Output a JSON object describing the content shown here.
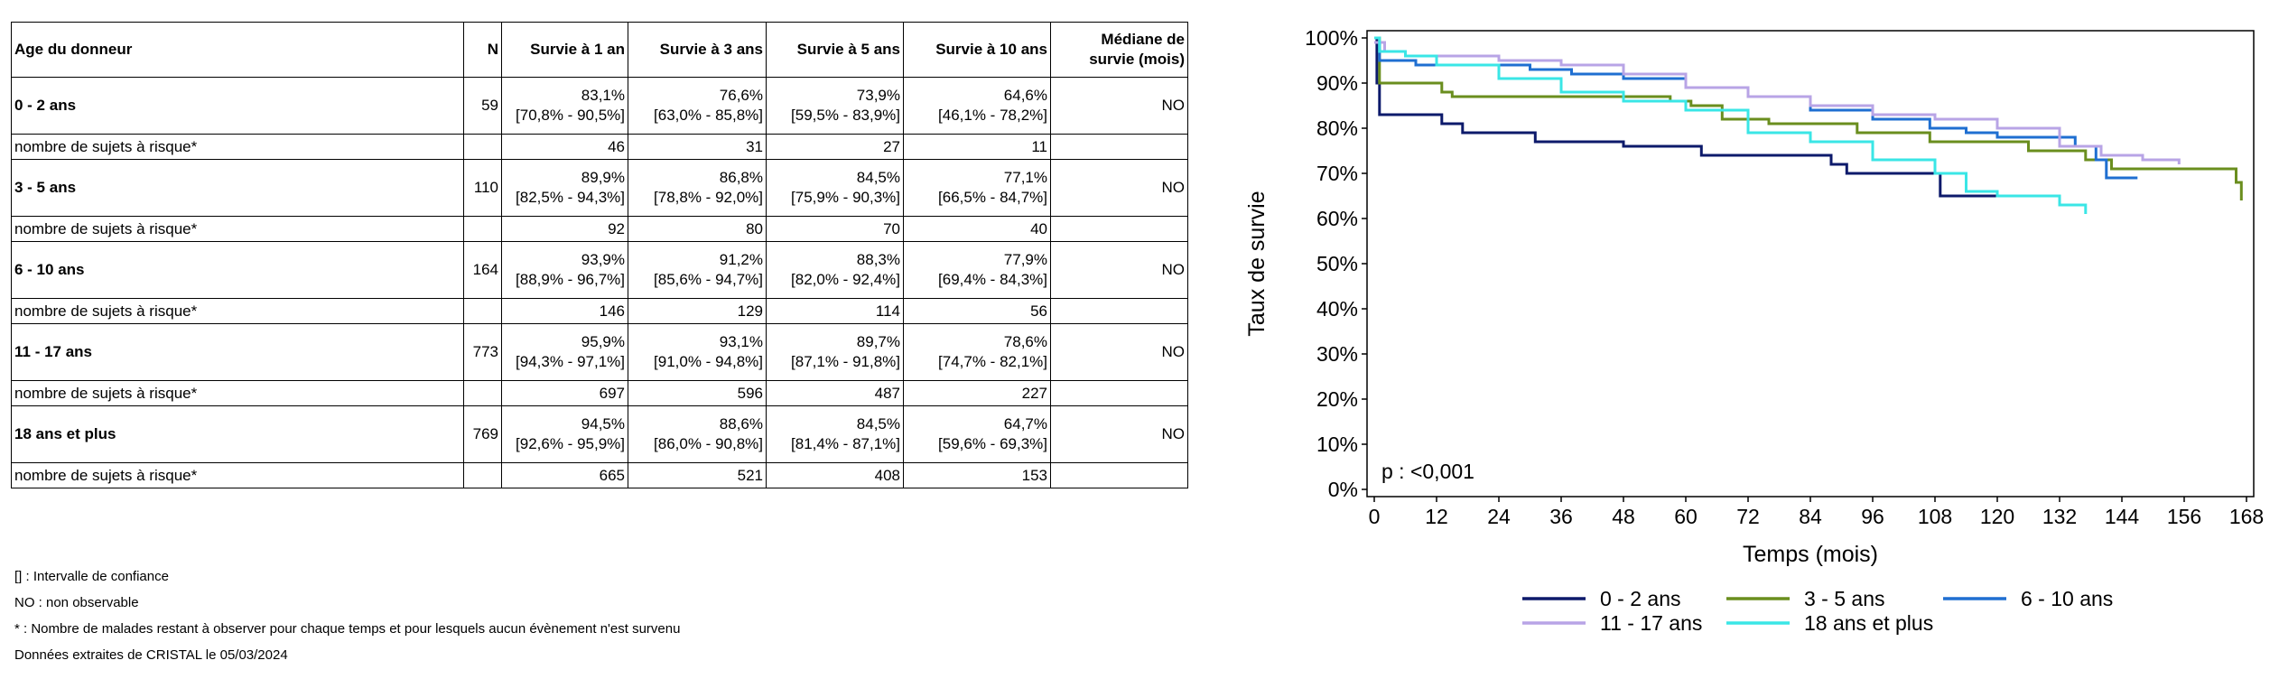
{
  "table": {
    "headers": [
      "Age du donneur",
      "N",
      "Survie à 1 an",
      "Survie à 3 ans",
      "Survie à 5 ans",
      "Survie à 10 ans",
      [
        "Médiane de",
        "survie (mois)"
      ]
    ],
    "risk_label": "nombre de sujets à risque*",
    "groups": [
      {
        "name": "0 - 2 ans",
        "n": "59",
        "surv": [
          [
            "83,1%",
            "[70,8% - 90,5%]"
          ],
          [
            "76,6%",
            "[63,0% - 85,8%]"
          ],
          [
            "73,9%",
            "[59,5% - 83,9%]"
          ],
          [
            "64,6%",
            "[46,1% - 78,2%]"
          ]
        ],
        "median": "NO",
        "risk": [
          "46",
          "31",
          "27",
          "11"
        ]
      },
      {
        "name": "3 - 5 ans",
        "n": "110",
        "surv": [
          [
            "89,9%",
            "[82,5% - 94,3%]"
          ],
          [
            "86,8%",
            "[78,8% - 92,0%]"
          ],
          [
            "84,5%",
            "[75,9% - 90,3%]"
          ],
          [
            "77,1%",
            "[66,5% - 84,7%]"
          ]
        ],
        "median": "NO",
        "risk": [
          "92",
          "80",
          "70",
          "40"
        ]
      },
      {
        "name": "6 - 10 ans",
        "n": "164",
        "surv": [
          [
            "93,9%",
            "[88,9% - 96,7%]"
          ],
          [
            "91,2%",
            "[85,6% - 94,7%]"
          ],
          [
            "88,3%",
            "[82,0% - 92,4%]"
          ],
          [
            "77,9%",
            "[69,4% - 84,3%]"
          ]
        ],
        "median": "NO",
        "risk": [
          "146",
          "129",
          "114",
          "56"
        ]
      },
      {
        "name": "11 - 17 ans",
        "n": "773",
        "surv": [
          [
            "95,9%",
            "[94,3% - 97,1%]"
          ],
          [
            "93,1%",
            "[91,0% - 94,8%]"
          ],
          [
            "89,7%",
            "[87,1% - 91,8%]"
          ],
          [
            "78,6%",
            "[74,7% - 82,1%]"
          ]
        ],
        "median": "NO",
        "risk": [
          "697",
          "596",
          "487",
          "227"
        ]
      },
      {
        "name": "18 ans et plus",
        "n": "769",
        "surv": [
          [
            "94,5%",
            "[92,6% - 95,9%]"
          ],
          [
            "88,6%",
            "[86,0% - 90,8%]"
          ],
          [
            "84,5%",
            "[81,4% - 87,1%]"
          ],
          [
            "64,7%",
            "[59,6% - 69,3%]"
          ]
        ],
        "median": "NO",
        "risk": [
          "665",
          "521",
          "408",
          "153"
        ]
      }
    ]
  },
  "notes": {
    "ci": "[] : Intervalle de confiance",
    "no": "NO : non observable",
    "risk": "* : Nombre de malades restant à observer pour chaque temps et pour lesquels aucun évènement n'est survenu",
    "source": "Données extraites de CRISTAL le 05/03/2024"
  },
  "chart_data": {
    "type": "line",
    "step": true,
    "xlabel": "Temps (mois)",
    "ylabel": "Taux de survie",
    "xlim": [
      0,
      168
    ],
    "ylim": [
      0,
      100
    ],
    "xticks": [
      0,
      12,
      24,
      36,
      48,
      60,
      72,
      84,
      96,
      108,
      120,
      132,
      144,
      156,
      168
    ],
    "yticks": [
      "0%",
      "10%",
      "20%",
      "30%",
      "40%",
      "50%",
      "60%",
      "70%",
      "80%",
      "90%",
      "100%"
    ],
    "annotation": "p : <0,001",
    "legend_position": "bottom",
    "series": [
      {
        "name": "0 - 2 ans",
        "color": "#0d1a6b",
        "points": [
          [
            0,
            100
          ],
          [
            0.5,
            90
          ],
          [
            1,
            83
          ],
          [
            12,
            83
          ],
          [
            13,
            81
          ],
          [
            16,
            81
          ],
          [
            17,
            79
          ],
          [
            30,
            79
          ],
          [
            31,
            77
          ],
          [
            47,
            77
          ],
          [
            48,
            76
          ],
          [
            62,
            76
          ],
          [
            63,
            74
          ],
          [
            86,
            74
          ],
          [
            88,
            72
          ],
          [
            91,
            70
          ],
          [
            108,
            70
          ],
          [
            109,
            65
          ],
          [
            132,
            65
          ]
        ]
      },
      {
        "name": "3 - 5 ans",
        "color": "#6a8e1e",
        "points": [
          [
            0,
            100
          ],
          [
            1,
            90
          ],
          [
            12,
            90
          ],
          [
            13,
            88
          ],
          [
            15,
            87
          ],
          [
            55,
            87
          ],
          [
            57,
            86
          ],
          [
            61,
            85
          ],
          [
            67,
            82
          ],
          [
            72,
            82
          ],
          [
            76,
            81
          ],
          [
            92,
            81
          ],
          [
            93,
            79
          ],
          [
            106,
            79
          ],
          [
            107,
            77
          ],
          [
            124,
            77
          ],
          [
            126,
            75
          ],
          [
            131,
            75
          ],
          [
            137,
            73
          ],
          [
            142,
            71
          ],
          [
            160,
            71
          ],
          [
            166,
            68
          ],
          [
            167,
            64
          ]
        ]
      },
      {
        "name": "6 - 10 ans",
        "color": "#1f6fd1",
        "points": [
          [
            0,
            99
          ],
          [
            1,
            95
          ],
          [
            5,
            95
          ],
          [
            8,
            94
          ],
          [
            30,
            93
          ],
          [
            38,
            92
          ],
          [
            48,
            91
          ],
          [
            60,
            89
          ],
          [
            72,
            87
          ],
          [
            84,
            84
          ],
          [
            96,
            82
          ],
          [
            107,
            80
          ],
          [
            114,
            79
          ],
          [
            120,
            78
          ],
          [
            130,
            78
          ],
          [
            135,
            76
          ],
          [
            139,
            73
          ],
          [
            141,
            69
          ],
          [
            147,
            69
          ]
        ]
      },
      {
        "name": "11 - 17 ans",
        "color": "#b8a4e6",
        "points": [
          [
            0,
            99
          ],
          [
            2,
            97
          ],
          [
            6,
            96
          ],
          [
            12,
            96
          ],
          [
            24,
            95
          ],
          [
            36,
            94
          ],
          [
            48,
            92
          ],
          [
            60,
            89
          ],
          [
            72,
            87
          ],
          [
            84,
            85
          ],
          [
            96,
            83
          ],
          [
            108,
            82
          ],
          [
            120,
            80
          ],
          [
            132,
            76
          ],
          [
            140,
            74
          ],
          [
            148,
            73
          ],
          [
            155,
            72
          ]
        ]
      },
      {
        "name": "18 ans et plus",
        "color": "#3ae6e6",
        "points": [
          [
            0,
            100
          ],
          [
            1,
            97
          ],
          [
            6,
            96
          ],
          [
            12,
            94
          ],
          [
            24,
            91
          ],
          [
            36,
            88
          ],
          [
            48,
            86
          ],
          [
            60,
            84
          ],
          [
            72,
            79
          ],
          [
            84,
            77
          ],
          [
            96,
            73
          ],
          [
            108,
            70
          ],
          [
            114,
            66
          ],
          [
            120,
            65
          ],
          [
            126,
            65
          ],
          [
            132,
            63
          ],
          [
            137,
            61
          ]
        ]
      }
    ]
  }
}
